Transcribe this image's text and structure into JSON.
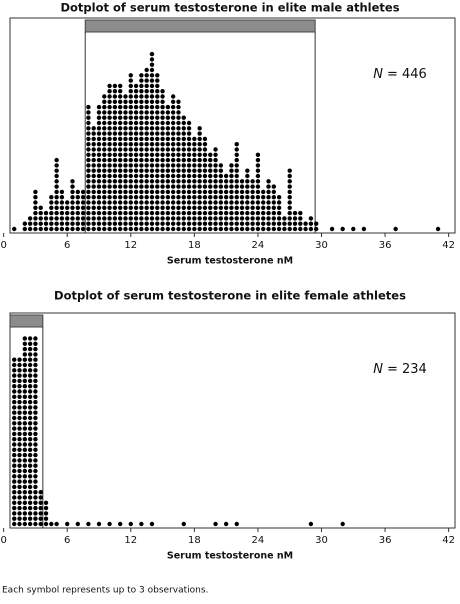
{
  "chart_data": [
    {
      "type": "dotplot",
      "title": "Dotplot of serum testosterone in elite male athletes",
      "x": [
        1,
        2,
        2.5,
        3,
        3.5,
        4,
        4.5,
        5,
        5.5,
        6,
        6.5,
        7,
        7.5,
        8,
        8.5,
        9,
        9.5,
        10,
        10.5,
        11,
        11.5,
        12,
        12.5,
        13,
        13.5,
        14,
        14.5,
        15,
        15.5,
        16,
        16.5,
        17,
        17.5,
        18,
        18.5,
        19,
        19.5,
        20,
        20.5,
        21,
        21.5,
        22,
        22.5,
        23,
        23.5,
        24,
        24.5,
        25,
        25.5,
        26,
        26.5,
        27,
        27.5,
        28,
        28.5,
        29,
        29.5,
        31,
        32,
        33,
        34,
        37,
        41
      ],
      "values": [
        1,
        2,
        3,
        8,
        5,
        4,
        7,
        14,
        8,
        6,
        10,
        8,
        8,
        24,
        20,
        24,
        26,
        28,
        28,
        28,
        26,
        30,
        28,
        30,
        31,
        34,
        30,
        27,
        24,
        26,
        25,
        22,
        21,
        18,
        20,
        18,
        15,
        16,
        13,
        11,
        13,
        17,
        10,
        12,
        10,
        15,
        8,
        10,
        9,
        7,
        3,
        12,
        4,
        4,
        2,
        3,
        2,
        1,
        1,
        1,
        1,
        1,
        1
      ],
      "xlim": [
        0.6,
        42.6
      ],
      "xticks": [
        0,
        6,
        12,
        18,
        24,
        30,
        36,
        42
      ],
      "xlabel": "Serum testosterone nM",
      "reference_range": [
        7.7,
        29.4
      ],
      "n_symbol": "N",
      "n_text": "= 446",
      "color": "#000000",
      "range_color": "#8c8c8c"
    },
    {
      "type": "dotplot",
      "title": "Dotplot of serum testosterone in elite female athletes",
      "x": [
        1,
        1.5,
        2,
        2.5,
        3,
        3.5,
        4,
        4.5,
        5,
        6,
        7,
        8,
        9,
        10,
        11,
        12,
        13,
        14,
        17,
        20,
        21,
        22,
        29,
        32
      ],
      "values": [
        32,
        32,
        36,
        36,
        36,
        7,
        5,
        1,
        1,
        1,
        1,
        1,
        1,
        1,
        1,
        1,
        1,
        1,
        1,
        1,
        1,
        1,
        1,
        1
      ],
      "xlim": [
        0.6,
        42.6
      ],
      "xticks": [
        0,
        6,
        12,
        18,
        24,
        30,
        36,
        42
      ],
      "xlabel": "Serum testosterone nM",
      "reference_range": [
        0.6,
        3.7
      ],
      "n_symbol": "N",
      "n_text": "= 234",
      "color": "#000000",
      "range_color": "#8c8c8c"
    }
  ],
  "note": "Each symbol represents up to 3 observations."
}
